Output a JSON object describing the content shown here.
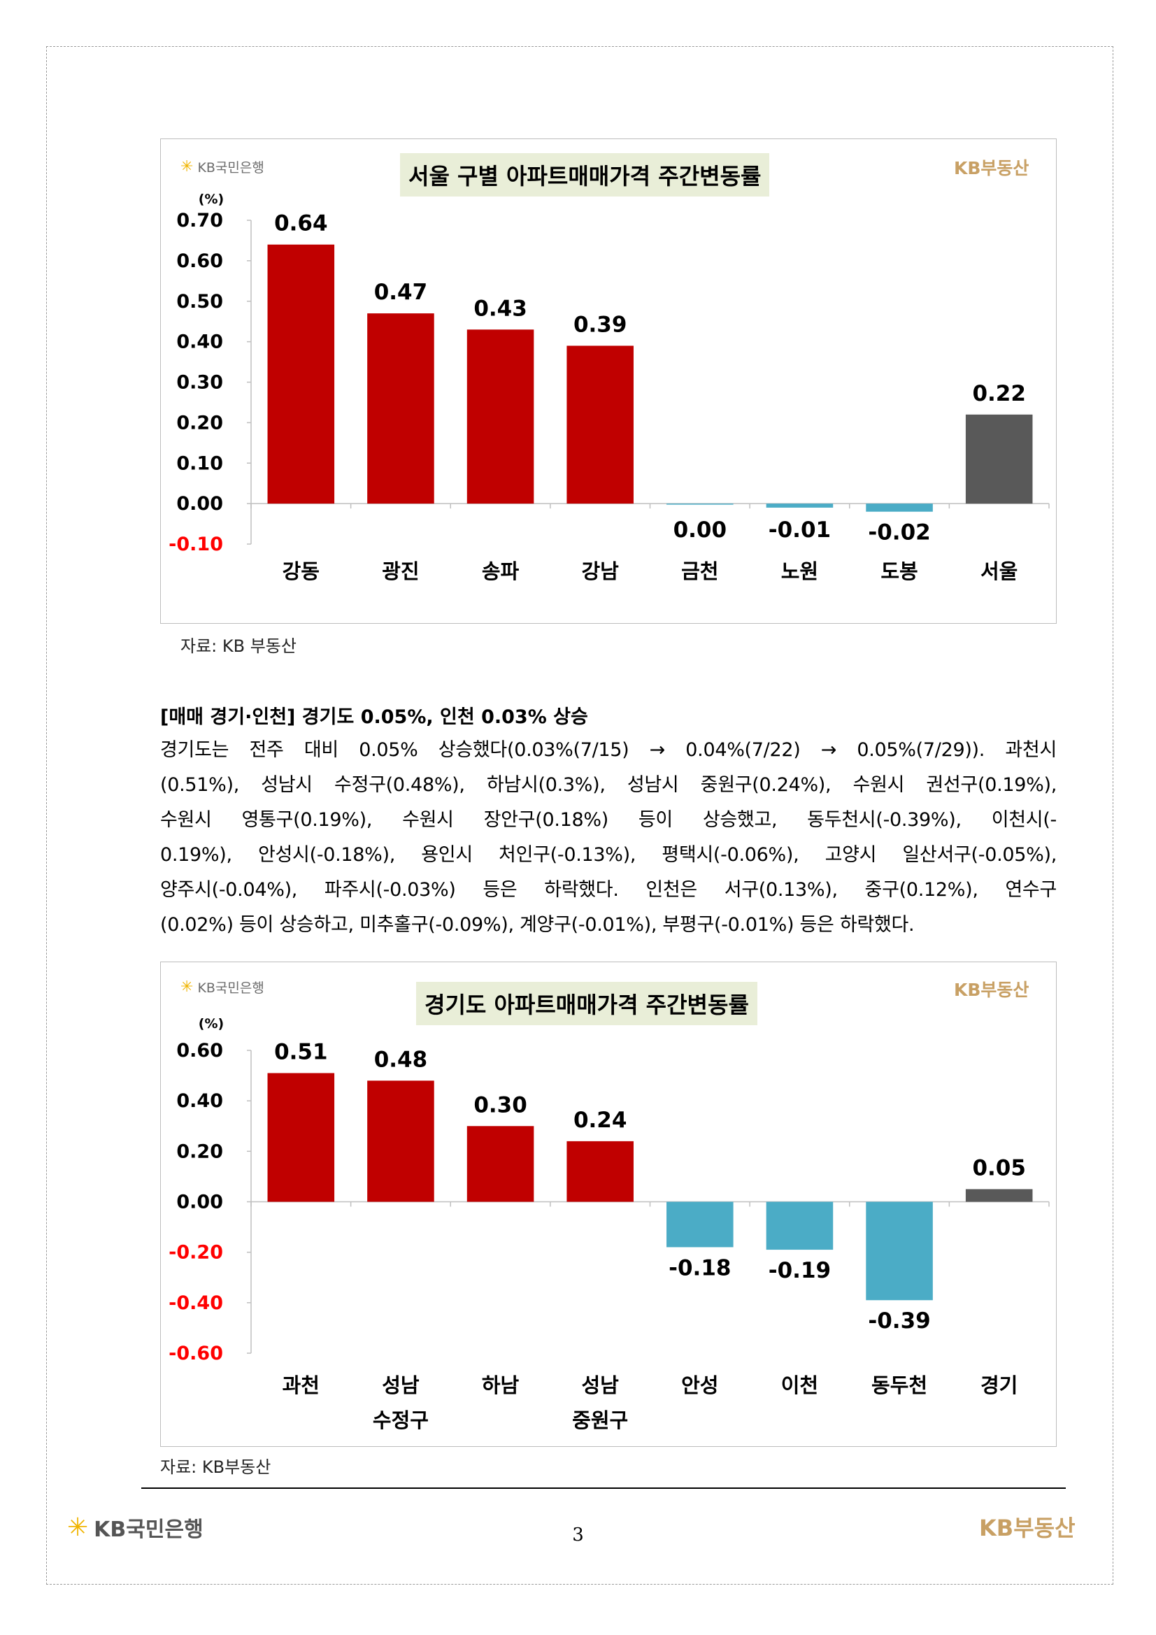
{
  "brand": {
    "bank": "KB국민은행",
    "realestate": "KB부동산",
    "realestate_spaced": "KB 부동산"
  },
  "colors": {
    "positive": "#c00000",
    "negative": "#4bacc6",
    "summary": "#595959",
    "negative_tick": "#ff0000"
  },
  "chart_data": [
    {
      "type": "bar",
      "title": "서울 구별 아파트매매가격 주간변동률",
      "unit": "(%)",
      "categories": [
        "강동",
        "광진",
        "송파",
        "강남",
        "금천",
        "노원",
        "도봉",
        "서울"
      ],
      "values": [
        0.64,
        0.47,
        0.43,
        0.39,
        0.0,
        -0.01,
        -0.02,
        0.22
      ],
      "value_labels": [
        "0.64",
        "0.47",
        "0.43",
        "0.39",
        "0.00",
        "-0.01",
        "-0.02",
        "0.22"
      ],
      "yticks": [
        "0.70",
        "0.60",
        "0.50",
        "0.40",
        "0.30",
        "0.20",
        "0.10",
        "0.00",
        "-0.10"
      ],
      "ylim": [
        -0.1,
        0.7
      ],
      "bar_colors": [
        "positive",
        "positive",
        "positive",
        "positive",
        "negative",
        "negative",
        "negative",
        "summary"
      ],
      "source": "자료: KB 부동산"
    },
    {
      "type": "bar",
      "title": "경기도 아파트매매가격 주간변동률",
      "unit": "(%)",
      "categories": [
        "과천",
        "성남\n수정구",
        "하남",
        "성남\n중원구",
        "안성",
        "이천",
        "동두천",
        "경기"
      ],
      "values": [
        0.51,
        0.48,
        0.3,
        0.24,
        -0.18,
        -0.19,
        -0.39,
        0.05
      ],
      "value_labels": [
        "0.51",
        "0.48",
        "0.30",
        "0.24",
        "-0.18",
        "-0.19",
        "-0.39",
        "0.05"
      ],
      "yticks": [
        "0.60",
        "0.40",
        "0.20",
        "0.00",
        "-0.20",
        "-0.40",
        "-0.60"
      ],
      "ylim": [
        -0.6,
        0.6
      ],
      "bar_colors": [
        "positive",
        "positive",
        "positive",
        "positive",
        "negative",
        "negative",
        "negative",
        "summary"
      ],
      "source": "자료: KB부동산"
    }
  ],
  "section": {
    "heading": "[매매 경기·인천] 경기도 0.05%, 인천 0.03% 상승",
    "lines": [
      "경기도는 전주 대비 0.05% 상승했다(0.03%(7/15) → 0.04%(7/22) → 0.05%(7/29)). 과천시",
      "(0.51%), 성남시 수정구(0.48%), 하남시(0.3%), 성남시 중원구(0.24%), 수원시 권선구(0.19%),",
      "수원시 영통구(0.19%), 수원시 장안구(0.18%) 등이 상승했고, 동두천시(-0.39%), 이천시(-",
      "0.19%), 안성시(-0.18%), 용인시 처인구(-0.13%), 평택시(-0.06%), 고양시 일산서구(-0.05%),",
      "양주시(-0.04%), 파주시(-0.03%) 등은 하락했다. 인천은 서구(0.13%), 중구(0.12%), 연수구",
      "(0.02%) 등이 상승하고, 미추홀구(-0.09%), 계양구(-0.01%), 부평구(-0.01%) 등은 하락했다."
    ]
  },
  "footer": {
    "page_number": "3"
  }
}
